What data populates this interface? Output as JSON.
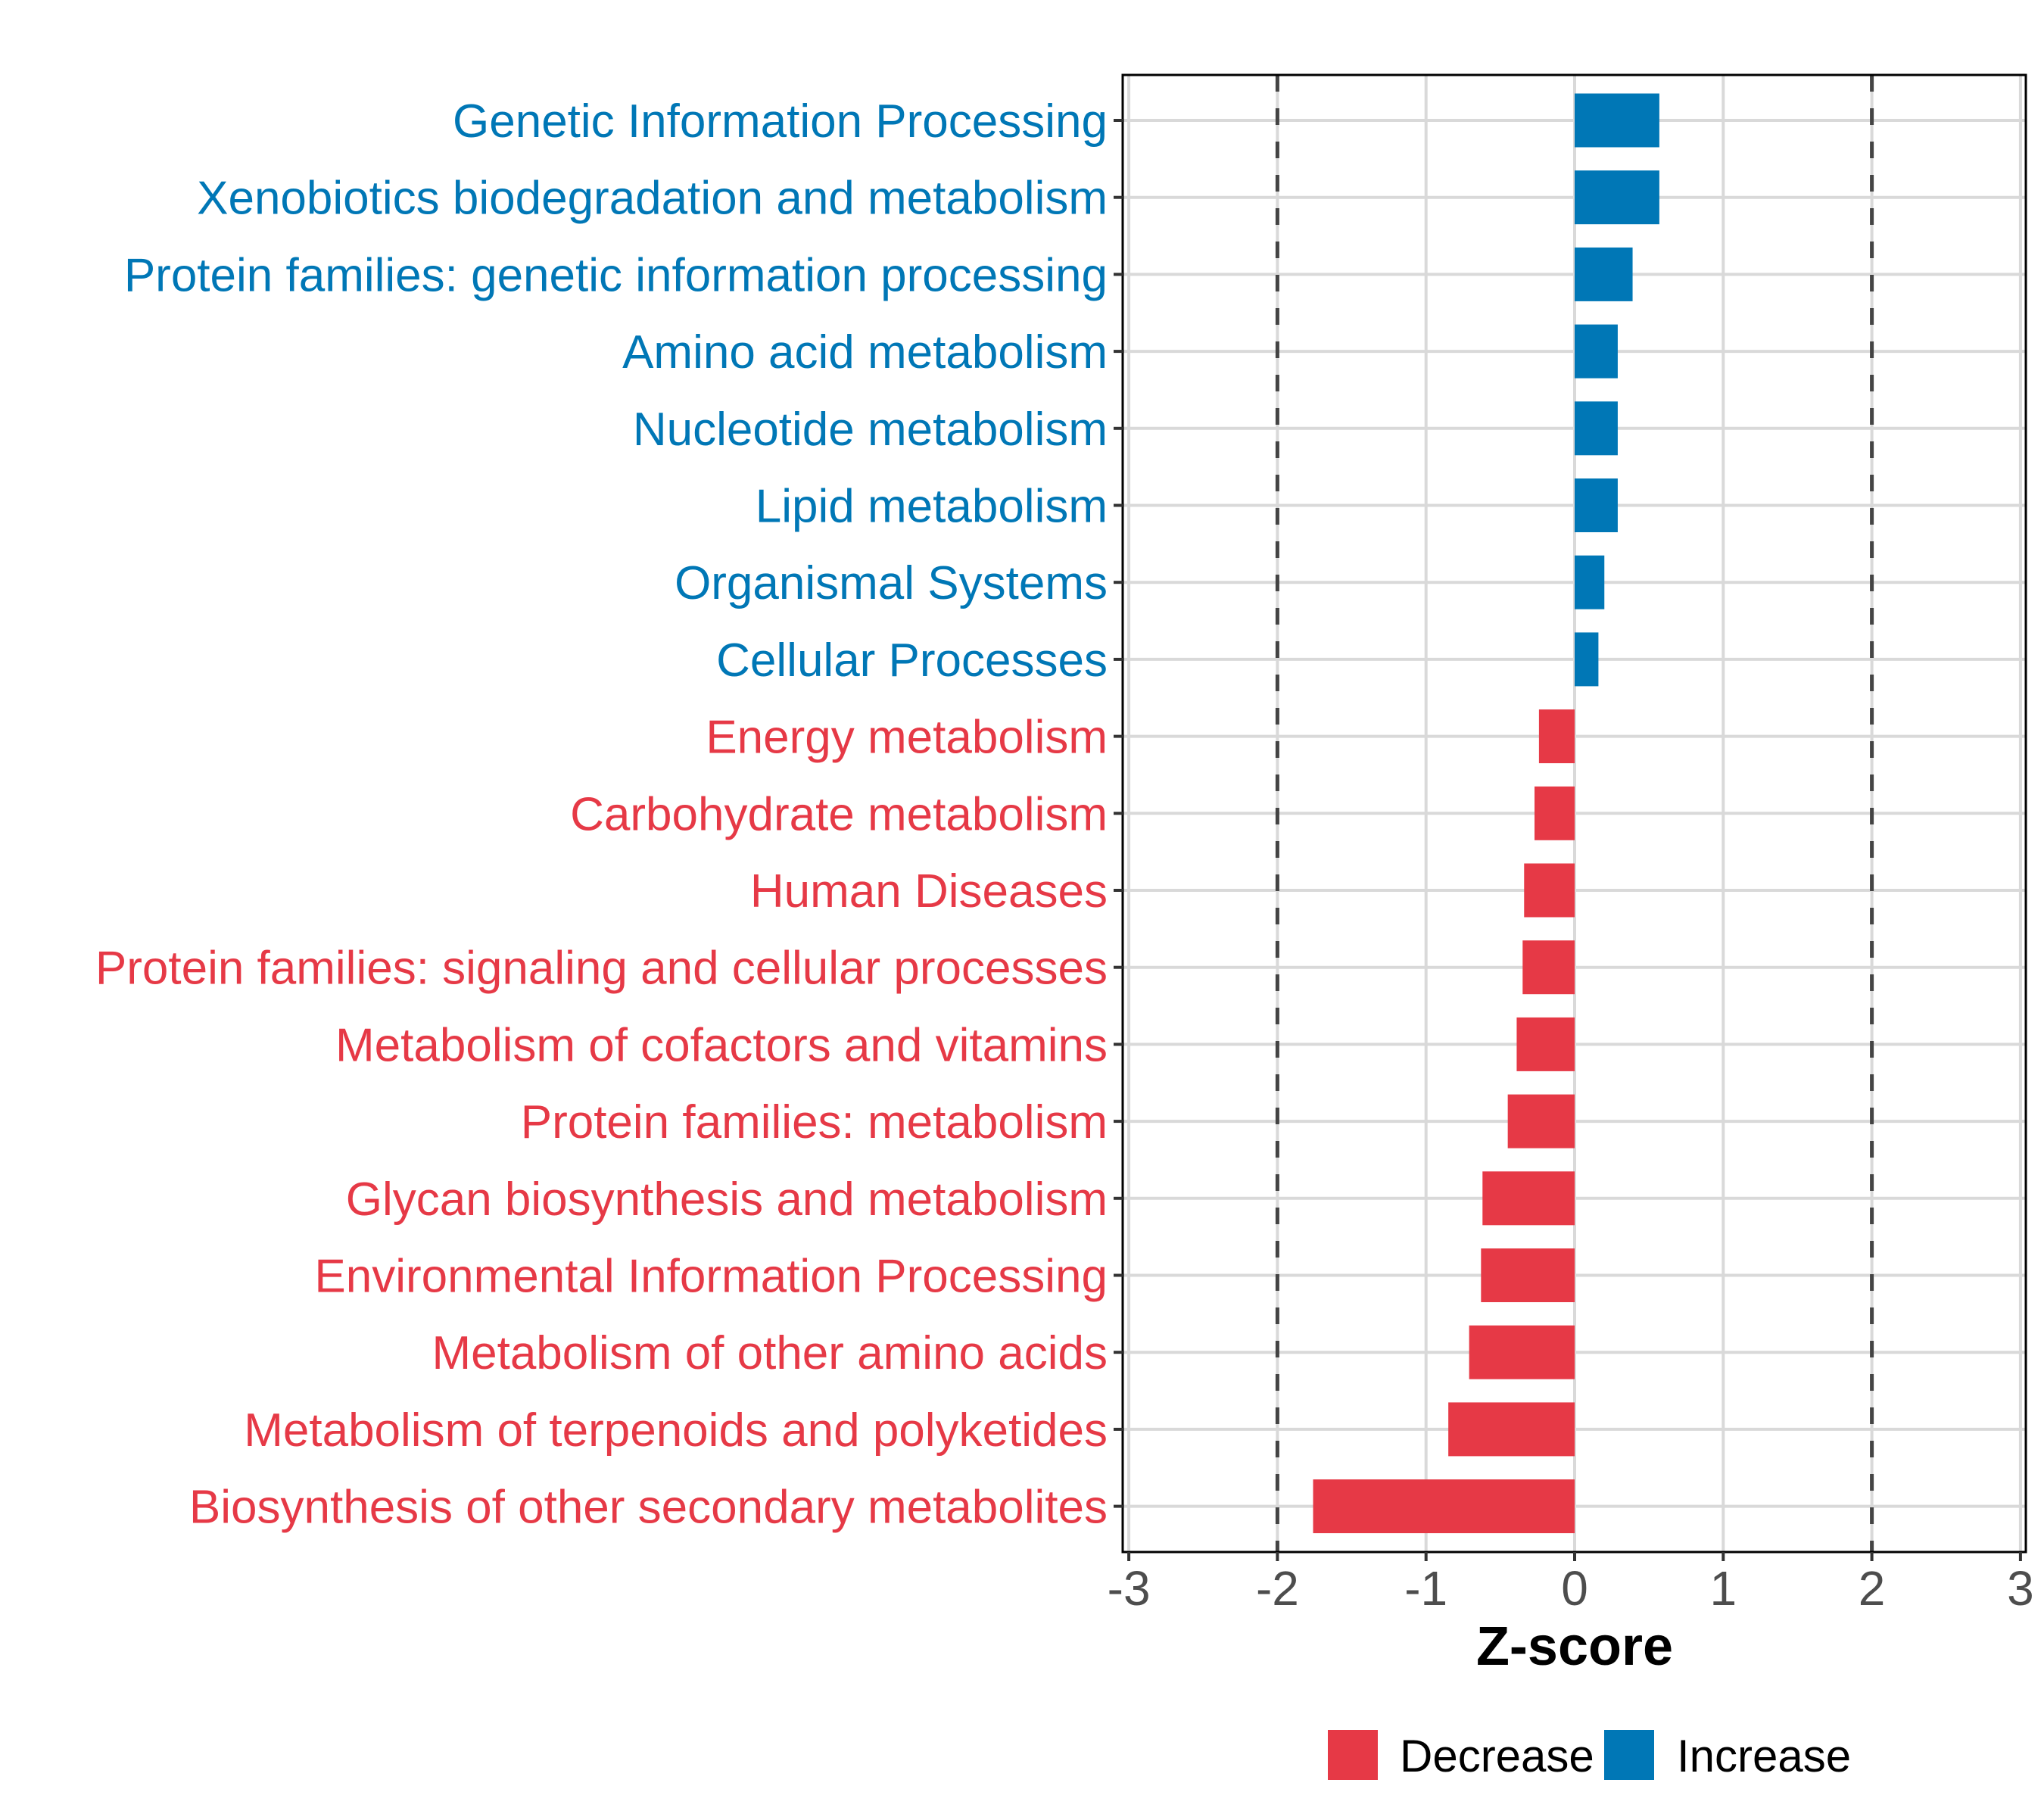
{
  "chart_data": {
    "type": "bar",
    "orientation": "horizontal",
    "title": "",
    "xlabel": "Z-score",
    "ylabel": "",
    "xlim": [
      -3,
      3
    ],
    "xticks": [
      -3,
      -2,
      -1,
      0,
      1,
      2,
      3
    ],
    "xtick_labels": [
      "-3",
      "-2",
      "-1",
      "0",
      "1",
      "2",
      "3"
    ],
    "reference_lines": [
      -2,
      2
    ],
    "grid": true,
    "legend_position": "bottom",
    "colors": {
      "Decrease": "#E63946",
      "Increase": "#0077B6"
    },
    "legend": [
      {
        "label": "Decrease",
        "color": "#E63946"
      },
      {
        "label": "Increase",
        "color": "#0077B6"
      }
    ],
    "categories": [
      "Genetic Information Processing",
      "Xenobiotics biodegradation and metabolism",
      "Protein families: genetic information processing",
      "Amino acid metabolism",
      "Nucleotide metabolism",
      "Lipid metabolism",
      "Organismal Systems",
      "Cellular Processes",
      "Energy metabolism",
      "Carbohydrate metabolism",
      "Human Diseases",
      "Protein families: signaling and cellular processes",
      "Metabolism of cofactors and vitamins",
      "Protein families: metabolism",
      "Glycan biosynthesis and metabolism",
      "Environmental Information Processing",
      "Metabolism of other amino acids",
      "Metabolism of terpenoids and polyketides",
      "Biosynthesis of other secondary metabolites"
    ],
    "values": [
      0.57,
      0.57,
      0.39,
      0.29,
      0.29,
      0.29,
      0.2,
      0.16,
      -0.24,
      -0.27,
      -0.34,
      -0.35,
      -0.39,
      -0.45,
      -0.62,
      -0.63,
      -0.71,
      -0.85,
      -1.76
    ],
    "groups": [
      "Increase",
      "Increase",
      "Increase",
      "Increase",
      "Increase",
      "Increase",
      "Increase",
      "Increase",
      "Decrease",
      "Decrease",
      "Decrease",
      "Decrease",
      "Decrease",
      "Decrease",
      "Decrease",
      "Decrease",
      "Decrease",
      "Decrease",
      "Decrease"
    ]
  }
}
